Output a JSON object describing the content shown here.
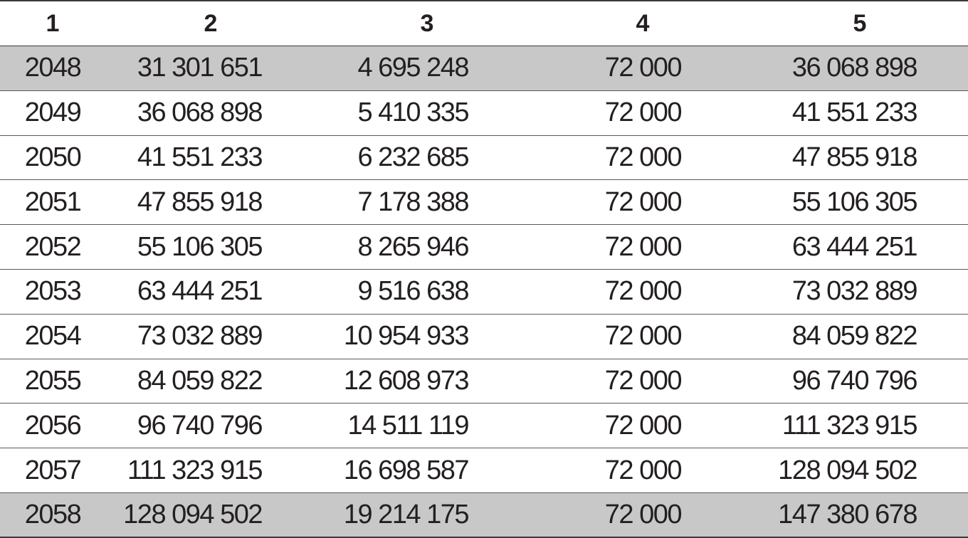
{
  "table": {
    "headers": [
      "1",
      "2",
      "3",
      "4",
      "5"
    ],
    "rows": [
      [
        "2048",
        "31 301 651",
        "4 695 248",
        "72 000",
        "36 068 898"
      ],
      [
        "2049",
        "36 068 898",
        "5 410 335",
        "72 000",
        "41 551 233"
      ],
      [
        "2050",
        "41 551 233",
        "6 232 685",
        "72 000",
        "47 855 918"
      ],
      [
        "2051",
        "47 855 918",
        "7 178 388",
        "72 000",
        "55 106 305"
      ],
      [
        "2052",
        "55 106 305",
        "8 265 946",
        "72 000",
        "63 444 251"
      ],
      [
        "2053",
        "63 444 251",
        "9 516 638",
        "72 000",
        "73 032 889"
      ],
      [
        "2054",
        "73 032 889",
        "10 954 933",
        "72 000",
        "84 059 822"
      ],
      [
        "2055",
        "84 059 822",
        "12 608 973",
        "72 000",
        "96 740 796"
      ],
      [
        "2056",
        "96 740 796",
        "14 511 119",
        "72 000",
        "111 323 915"
      ],
      [
        "2057",
        "111 323 915",
        "16 698 587",
        "72 000",
        "128 094 502"
      ],
      [
        "2058",
        "128 094 502",
        "19 214 175",
        "72 000",
        "147 380 678"
      ]
    ],
    "shaded_rows": [
      0,
      10
    ],
    "shade_color": "#c8c8c8"
  }
}
